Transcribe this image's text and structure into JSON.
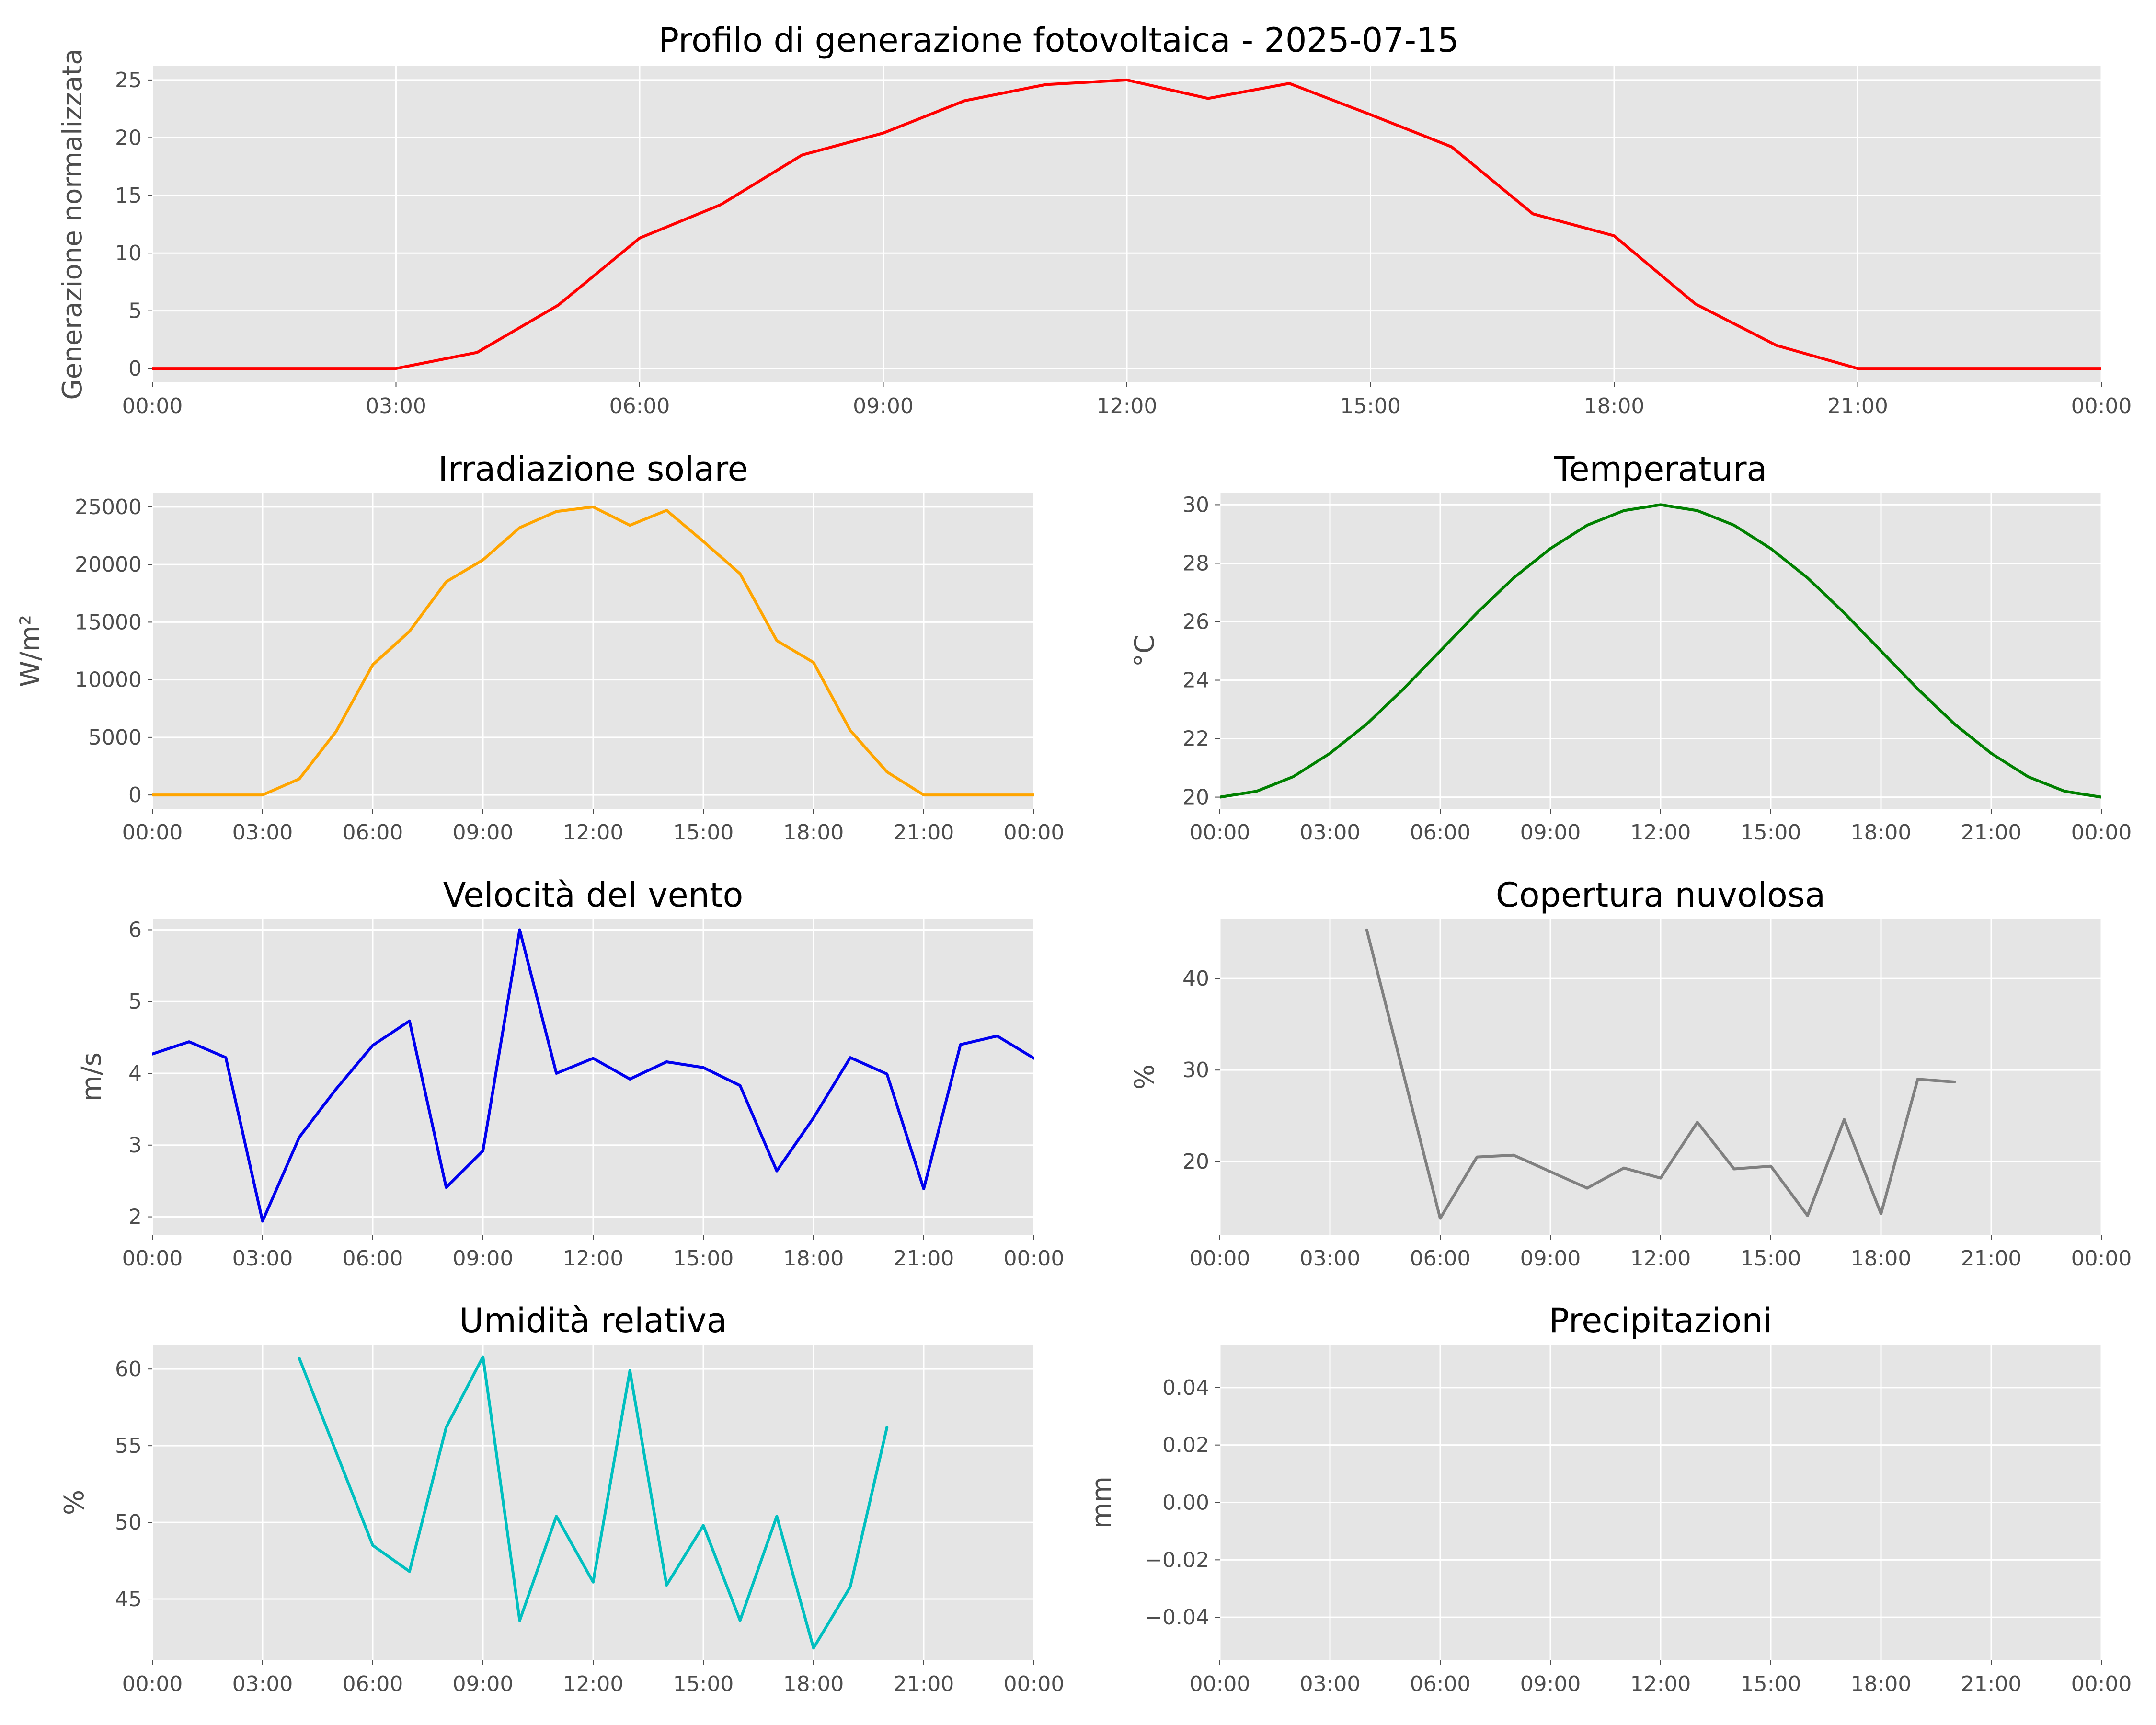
{
  "figure": {
    "title": "Profilo di generazione fotovoltaica - 2025-07-15"
  },
  "theme": {
    "panel_background": "#e5e5e5",
    "grid_color": "#ffffff",
    "tick_color": "#4d4d4d"
  },
  "time_ticks": [
    "00:00",
    "03:00",
    "06:00",
    "09:00",
    "12:00",
    "15:00",
    "18:00",
    "21:00",
    "00:00"
  ],
  "chart_data": [
    {
      "id": "generation",
      "type": "line",
      "title": "",
      "xlabel": "",
      "ylabel": "Generazione normalizzata",
      "color": "#ff0000",
      "grid": true,
      "x": [
        0,
        1,
        2,
        3,
        4,
        5,
        6,
        7,
        8,
        9,
        10,
        11,
        12,
        13,
        14,
        15,
        16,
        17,
        18,
        19,
        20,
        21,
        22,
        23,
        24
      ],
      "xlim": [
        0,
        24
      ],
      "ylim": [
        -1.2,
        26.2
      ],
      "yticks": [
        0,
        5,
        10,
        15,
        20,
        25
      ],
      "values": [
        0,
        0,
        0,
        0,
        1.4,
        5.5,
        11.3,
        14.2,
        18.5,
        20.4,
        23.2,
        24.6,
        25.0,
        23.4,
        24.7,
        22.0,
        19.2,
        13.4,
        11.5,
        5.6,
        2.0,
        0,
        0,
        0,
        0
      ]
    },
    {
      "id": "irradiation",
      "type": "line",
      "title": "Irradiazione solare",
      "xlabel": "",
      "ylabel": "W/m²",
      "color": "#ffa500",
      "grid": true,
      "x": [
        0,
        1,
        2,
        3,
        4,
        5,
        6,
        7,
        8,
        9,
        10,
        11,
        12,
        13,
        14,
        15,
        16,
        17,
        18,
        19,
        20,
        21,
        22,
        23,
        24
      ],
      "xlim": [
        0,
        24
      ],
      "ylim": [
        -1200,
        26200
      ],
      "yticks": [
        0,
        5000,
        10000,
        15000,
        20000,
        25000
      ],
      "values": [
        0,
        0,
        0,
        0,
        1400,
        5500,
        11300,
        14200,
        18500,
        20400,
        23200,
        24600,
        25000,
        23400,
        24700,
        22000,
        19200,
        13400,
        11500,
        5600,
        2000,
        0,
        0,
        0,
        0
      ]
    },
    {
      "id": "temperature",
      "type": "line",
      "title": "Temperatura",
      "xlabel": "",
      "ylabel": "°C",
      "color": "#008000",
      "grid": true,
      "x": [
        0,
        1,
        2,
        3,
        4,
        5,
        6,
        7,
        8,
        9,
        10,
        11,
        12,
        13,
        14,
        15,
        16,
        17,
        18,
        19,
        20,
        21,
        22,
        23,
        24
      ],
      "xlim": [
        0,
        24
      ],
      "ylim": [
        19.6,
        30.4
      ],
      "yticks": [
        20,
        22,
        24,
        26,
        28,
        30
      ],
      "values": [
        20.0,
        20.2,
        20.7,
        21.5,
        22.5,
        23.7,
        25.0,
        26.3,
        27.5,
        28.5,
        29.3,
        29.8,
        30.0,
        29.8,
        29.3,
        28.5,
        27.5,
        26.3,
        25.0,
        23.7,
        22.5,
        21.5,
        20.7,
        20.2,
        20.0
      ]
    },
    {
      "id": "wind",
      "type": "line",
      "title": "Velocità del vento",
      "xlabel": "",
      "ylabel": "m/s",
      "color": "#0000ee",
      "grid": true,
      "x": [
        0,
        1,
        2,
        3,
        4,
        5,
        6,
        7,
        8,
        9,
        10,
        11,
        12,
        13,
        14,
        15,
        16,
        17,
        18,
        19,
        20,
        21,
        22,
        23,
        24
      ],
      "xlim": [
        0,
        24
      ],
      "ylim": [
        1.75,
        6.15
      ],
      "yticks": [
        2,
        3,
        4,
        5,
        6
      ],
      "values": [
        4.27,
        4.44,
        4.22,
        1.94,
        3.11,
        3.78,
        4.39,
        4.73,
        2.41,
        2.92,
        6.0,
        4.0,
        4.21,
        3.92,
        4.16,
        4.08,
        3.83,
        2.64,
        3.38,
        4.22,
        3.99,
        2.39,
        4.4,
        4.52,
        4.21
      ]
    },
    {
      "id": "cloud",
      "type": "line",
      "title": "Copertura nuvolosa",
      "xlabel": "",
      "ylabel": "%",
      "color": "#808080",
      "grid": true,
      "x": [
        4,
        6,
        7,
        8,
        9,
        10,
        11,
        12,
        13,
        14,
        15,
        16,
        17,
        18,
        19,
        20
      ],
      "xlim": [
        0,
        24
      ],
      "ylim": [
        12.0,
        46.5
      ],
      "yticks": [
        20,
        30,
        40
      ],
      "values": [
        45.3,
        13.8,
        20.5,
        20.7,
        18.9,
        17.1,
        19.3,
        18.2,
        24.3,
        19.2,
        19.5,
        14.1,
        24.6,
        14.3,
        29.0,
        28.7
      ]
    },
    {
      "id": "humidity",
      "type": "line",
      "title": "Umidità relativa",
      "xlabel": "",
      "ylabel": "%",
      "color": "#00bfbf",
      "grid": true,
      "x": [
        4,
        6,
        7,
        8,
        9,
        10,
        11,
        12,
        13,
        14,
        15,
        16,
        17,
        18,
        19,
        20
      ],
      "xlim": [
        0,
        24
      ],
      "ylim": [
        41.0,
        61.6
      ],
      "yticks": [
        45,
        50,
        55,
        60
      ],
      "values": [
        60.7,
        48.5,
        46.8,
        56.2,
        60.8,
        43.6,
        50.4,
        46.1,
        59.9,
        45.9,
        49.8,
        43.6,
        50.4,
        41.8,
        45.8,
        56.2
      ]
    },
    {
      "id": "precipitation",
      "type": "line",
      "title": "Precipitazioni",
      "xlabel": "",
      "ylabel": "mm",
      "color": "#1f77b4",
      "grid": true,
      "x": [],
      "xlim": [
        0,
        24
      ],
      "ylim": [
        -0.055,
        0.055
      ],
      "yticks": [
        -0.04,
        -0.02,
        0.0,
        0.02,
        0.04
      ],
      "ytick_labels": [
        "−0.04",
        "−0.02",
        "0.00",
        "0.02",
        "0.04"
      ],
      "values": []
    }
  ]
}
